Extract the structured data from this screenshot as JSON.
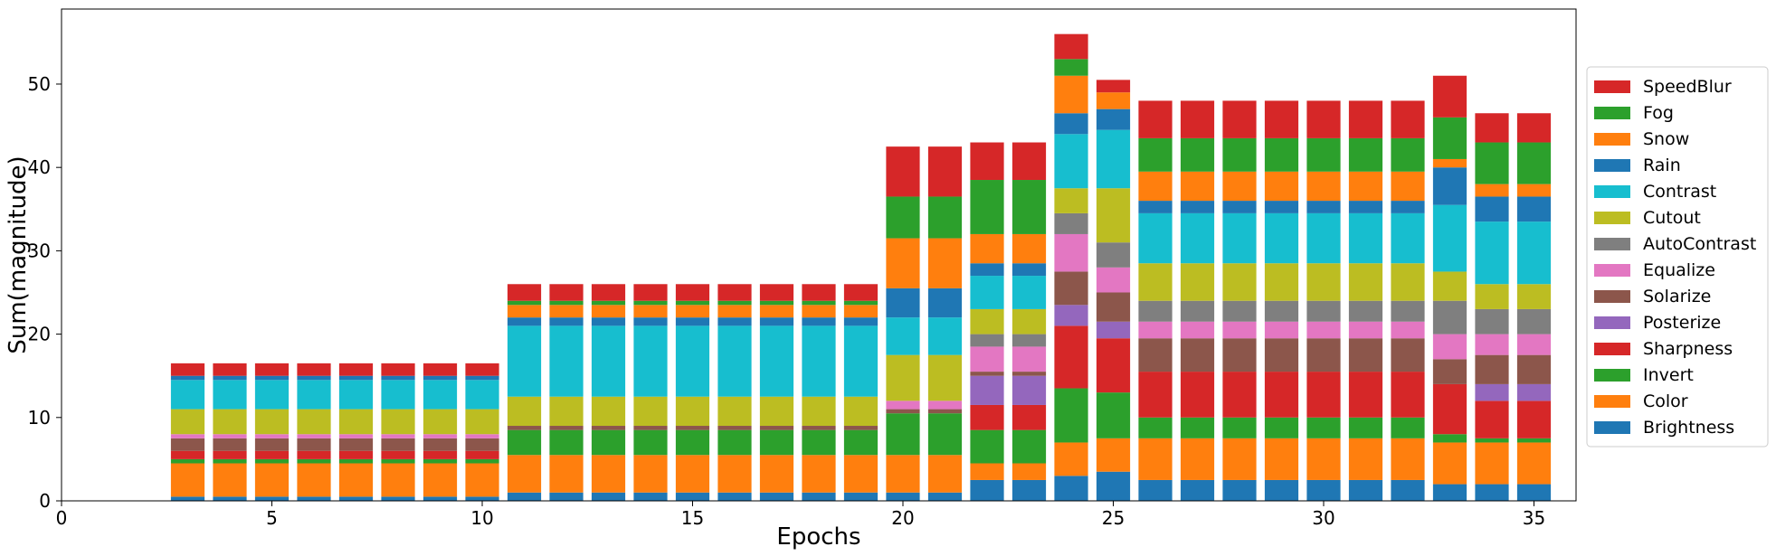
{
  "chart_data": {
    "type": "bar",
    "stacked": true,
    "xlabel": "Epochs",
    "ylabel": "Sum(magnitude)",
    "xlim": [
      0,
      36
    ],
    "ylim": [
      0,
      59
    ],
    "xticks": [
      0,
      5,
      10,
      15,
      20,
      25,
      30,
      35
    ],
    "yticks": [
      0,
      10,
      20,
      30,
      40,
      50
    ],
    "legend_position": "right",
    "grid": false,
    "x": [
      3,
      4,
      5,
      6,
      7,
      8,
      9,
      10,
      11,
      12,
      13,
      14,
      15,
      16,
      17,
      18,
      19,
      20,
      21,
      22,
      23,
      24,
      25,
      26,
      27,
      28,
      29,
      30,
      31,
      32,
      33,
      34,
      35
    ],
    "series": [
      {
        "name": "Brightness",
        "color": "#1f77b4",
        "values": [
          0.5,
          0.5,
          0.5,
          0.5,
          0.5,
          0.5,
          0.5,
          0.5,
          1,
          1,
          1,
          1,
          1,
          1,
          1,
          1,
          1,
          1,
          1,
          2.5,
          2.5,
          3,
          3.5,
          2.5,
          2.5,
          2.5,
          2.5,
          2.5,
          2.5,
          2.5,
          2,
          2,
          2
        ]
      },
      {
        "name": "Color",
        "color": "#ff7f0e",
        "values": [
          4,
          4,
          4,
          4,
          4,
          4,
          4,
          4,
          4.5,
          4.5,
          4.5,
          4.5,
          4.5,
          4.5,
          4.5,
          4.5,
          4.5,
          4.5,
          4.5,
          2,
          2,
          4,
          4,
          5,
          5,
          5,
          5,
          5,
          5,
          5,
          5,
          5,
          5
        ]
      },
      {
        "name": "Invert",
        "color": "#2ca02c",
        "values": [
          0.5,
          0.5,
          0.5,
          0.5,
          0.5,
          0.5,
          0.5,
          0.5,
          3,
          3,
          3,
          3,
          3,
          3,
          3,
          3,
          3,
          5,
          5,
          4,
          4,
          6.5,
          5.5,
          2.5,
          2.5,
          2.5,
          2.5,
          2.5,
          2.5,
          2.5,
          1,
          0.5,
          0.5
        ]
      },
      {
        "name": "Sharpness",
        "color": "#d62728",
        "values": [
          1,
          1,
          1,
          1,
          1,
          1,
          1,
          1,
          0,
          0,
          0,
          0,
          0,
          0,
          0,
          0,
          0,
          0,
          0,
          3,
          3,
          7.5,
          6.5,
          5.5,
          5.5,
          5.5,
          5.5,
          5.5,
          5.5,
          5.5,
          6,
          4.5,
          4.5
        ]
      },
      {
        "name": "Posterize",
        "color": "#9467bd",
        "values": [
          0,
          0,
          0,
          0,
          0,
          0,
          0,
          0,
          0,
          0,
          0,
          0,
          0,
          0,
          0,
          0,
          0,
          0,
          0,
          3.5,
          3.5,
          2.5,
          2,
          0,
          0,
          0,
          0,
          0,
          0,
          0,
          0,
          2,
          2
        ]
      },
      {
        "name": "Solarize",
        "color": "#8c564b",
        "values": [
          1.5,
          1.5,
          1.5,
          1.5,
          1.5,
          1.5,
          1.5,
          1.5,
          0.5,
          0.5,
          0.5,
          0.5,
          0.5,
          0.5,
          0.5,
          0.5,
          0.5,
          0.5,
          0.5,
          0.5,
          0.5,
          4,
          3.5,
          4,
          4,
          4,
          4,
          4,
          4,
          4,
          3,
          3.5,
          3.5
        ]
      },
      {
        "name": "Equalize",
        "color": "#e377c2",
        "values": [
          0.5,
          0.5,
          0.5,
          0.5,
          0.5,
          0.5,
          0.5,
          0.5,
          0,
          0,
          0,
          0,
          0,
          0,
          0,
          0,
          0,
          1,
          1,
          3,
          3,
          4.5,
          3,
          2,
          2,
          2,
          2,
          2,
          2,
          2,
          3,
          2.5,
          2.5
        ]
      },
      {
        "name": "AutoContrast",
        "color": "#7f7f7f",
        "values": [
          0,
          0,
          0,
          0,
          0,
          0,
          0,
          0,
          0,
          0,
          0,
          0,
          0,
          0,
          0,
          0,
          0,
          0,
          0,
          1.5,
          1.5,
          2.5,
          3,
          2.5,
          2.5,
          2.5,
          2.5,
          2.5,
          2.5,
          2.5,
          4,
          3,
          3
        ]
      },
      {
        "name": "Cutout",
        "color": "#bcbd22",
        "values": [
          3,
          3,
          3,
          3,
          3,
          3,
          3,
          3,
          3.5,
          3.5,
          3.5,
          3.5,
          3.5,
          3.5,
          3.5,
          3.5,
          3.5,
          5.5,
          5.5,
          3,
          3,
          3,
          6.5,
          4.5,
          4.5,
          4.5,
          4.5,
          4.5,
          4.5,
          4.5,
          3.5,
          3,
          3
        ]
      },
      {
        "name": "Contrast",
        "color": "#17becf",
        "values": [
          3.5,
          3.5,
          3.5,
          3.5,
          3.5,
          3.5,
          3.5,
          3.5,
          8.5,
          8.5,
          8.5,
          8.5,
          8.5,
          8.5,
          8.5,
          8.5,
          8.5,
          4.5,
          4.5,
          4,
          4,
          6.5,
          7,
          6,
          6,
          6,
          6,
          6,
          6,
          6,
          8,
          7.5,
          7.5
        ]
      },
      {
        "name": "Rain",
        "color": "#1f77b4",
        "values": [
          0.5,
          0.5,
          0.5,
          0.5,
          0.5,
          0.5,
          0.5,
          0.5,
          1,
          1,
          1,
          1,
          1,
          1,
          1,
          1,
          1,
          3.5,
          3.5,
          1.5,
          1.5,
          2.5,
          2.5,
          1.5,
          1.5,
          1.5,
          1.5,
          1.5,
          1.5,
          1.5,
          4.5,
          3,
          3
        ]
      },
      {
        "name": "Snow",
        "color": "#ff7f0e",
        "values": [
          0,
          0,
          0,
          0,
          0,
          0,
          0,
          0,
          1.5,
          1.5,
          1.5,
          1.5,
          1.5,
          1.5,
          1.5,
          1.5,
          1.5,
          6,
          6,
          3.5,
          3.5,
          4.5,
          2,
          3.5,
          3.5,
          3.5,
          3.5,
          3.5,
          3.5,
          3.5,
          1,
          1.5,
          1.5
        ]
      },
      {
        "name": "Fog",
        "color": "#2ca02c",
        "values": [
          0,
          0,
          0,
          0,
          0,
          0,
          0,
          0,
          0.5,
          0.5,
          0.5,
          0.5,
          0.5,
          0.5,
          0.5,
          0.5,
          0.5,
          5,
          5,
          6.5,
          6.5,
          2,
          0,
          4,
          4,
          4,
          4,
          4,
          4,
          4,
          5,
          5,
          5
        ]
      },
      {
        "name": "SpeedBlur",
        "color": "#d62728",
        "values": [
          1.5,
          1.5,
          1.5,
          1.5,
          1.5,
          1.5,
          1.5,
          1.5,
          2,
          2,
          2,
          2,
          2,
          2,
          2,
          2,
          2,
          6,
          6,
          4.5,
          4.5,
          3,
          1.5,
          4.5,
          4.5,
          4.5,
          4.5,
          4.5,
          4.5,
          4.5,
          5,
          3.5,
          3.5
        ]
      }
    ]
  }
}
